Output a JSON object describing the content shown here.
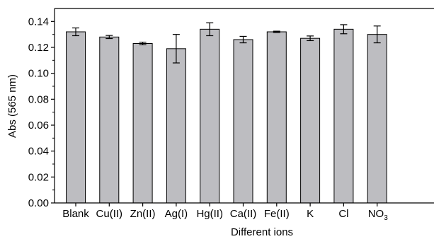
{
  "chart_data": {
    "type": "bar",
    "xlabel": "Different ions",
    "ylabel": "Abs (565 nm)",
    "categories": [
      "Blank",
      "Cu(II)",
      "Zn(II)",
      "Ag(I)",
      "Hg(II)",
      "Ca(II)",
      "Fe(II)",
      "K",
      "Cl",
      "NO3"
    ],
    "values": [
      0.132,
      0.128,
      0.123,
      0.119,
      0.134,
      0.126,
      0.132,
      0.127,
      0.134,
      0.13
    ],
    "errors": [
      0.003,
      0.0012,
      0.001,
      0.011,
      0.005,
      0.0025,
      0.0005,
      0.0018,
      0.0035,
      0.0065
    ],
    "ylim": [
      0,
      0.15
    ],
    "yticks": [
      "0.00",
      "0.02",
      "0.04",
      "0.06",
      "0.08",
      "0.10",
      "0.12",
      "0.14"
    ],
    "grid": false,
    "bar_color": "#bdbdc1",
    "edge_color": "#000000"
  }
}
